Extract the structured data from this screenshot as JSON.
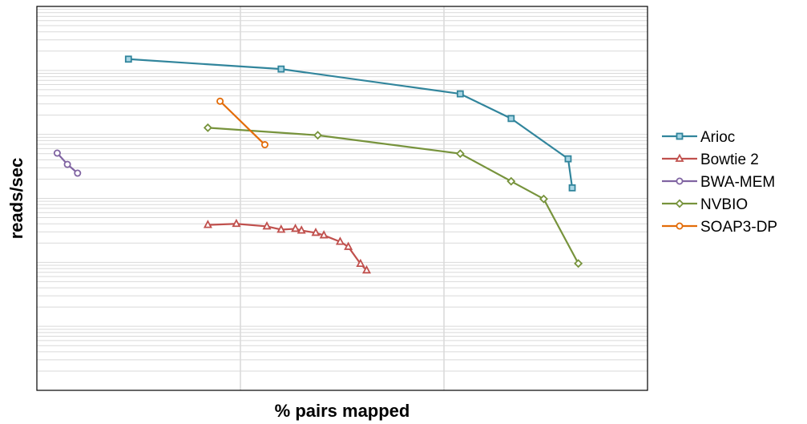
{
  "chart_data": {
    "type": "line",
    "title": "",
    "xlabel": "% pairs mapped",
    "ylabel": "reads/sec",
    "xlim": [
      0,
      30
    ],
    "ylim": [
      1,
      1000000
    ],
    "y_scale": "log",
    "x_major_gridlines": [
      10,
      20
    ],
    "y_minor_gridlines": true,
    "legend_position": "right",
    "series": [
      {
        "name": "Arioc",
        "color": "#31859C",
        "marker": "square",
        "x": [
          4.5,
          12.0,
          20.8,
          23.3,
          26.1,
          26.3
        ],
        "y": [
          150000,
          105000,
          43000,
          17700,
          4150,
          1460
        ]
      },
      {
        "name": "Bowtie 2",
        "color": "#C0504D",
        "marker": "triangle",
        "x": [
          8.4,
          9.8,
          11.3,
          12.0,
          12.7,
          13.0,
          13.7,
          14.1,
          14.9,
          15.3,
          15.9,
          16.2
        ],
        "y": [
          385,
          400,
          365,
          325,
          335,
          315,
          290,
          265,
          210,
          175,
          95,
          75
        ]
      },
      {
        "name": "BWA-MEM",
        "color": "#8064A2",
        "marker": "circle",
        "x": [
          1.0,
          1.5,
          2.0
        ],
        "y": [
          5100,
          3400,
          2480
        ]
      },
      {
        "name": "NVBIO",
        "color": "#77933C",
        "marker": "diamond",
        "x": [
          8.4,
          13.8,
          20.8,
          23.3,
          24.9,
          26.6
        ],
        "y": [
          12700,
          9700,
          5000,
          1850,
          980,
          96
        ]
      },
      {
        "name": "SOAP3-DP",
        "color": "#E36C09",
        "marker": "circle",
        "x": [
          9.0,
          11.2
        ],
        "y": [
          33000,
          6900
        ]
      }
    ]
  }
}
